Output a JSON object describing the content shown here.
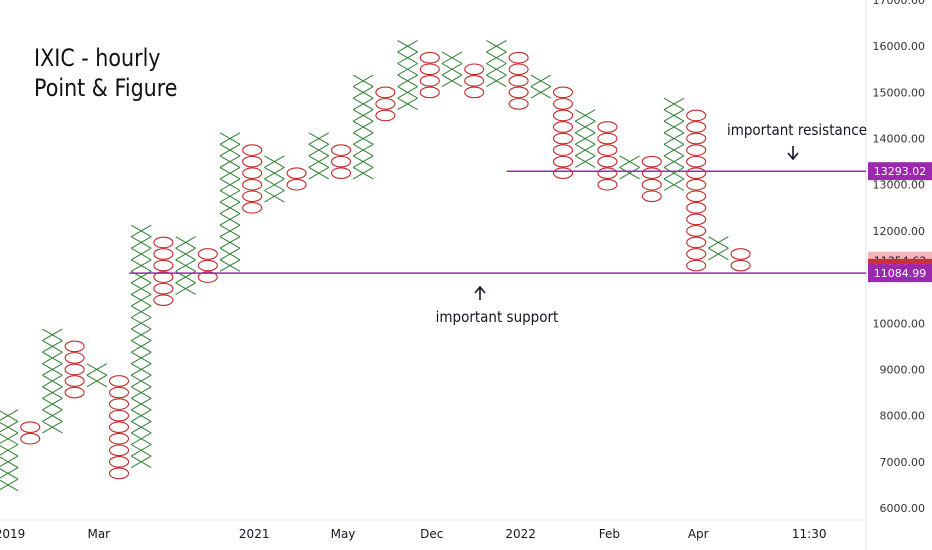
{
  "title_lines": [
    "IXIC - hourly",
    "Point & Figure"
  ],
  "chart_data": {
    "type": "point-and-figure",
    "title": "IXIC - hourly Point & Figure",
    "ylim": [
      5900,
      17200
    ],
    "box_size": 250,
    "y_ticks": [
      6000,
      7000,
      8000,
      9000,
      10000,
      11000,
      12000,
      13000,
      14000,
      15000,
      16000,
      17000
    ],
    "y_tick_labels": [
      "6000.00",
      "7000.00",
      "8000.00",
      "9000.00",
      "10000.00",
      "11000.00",
      "12000.00",
      "13000.00",
      "14000.00",
      "15000.00",
      "16000.00",
      "17000.00"
    ],
    "x_labels": [
      {
        "col": 0,
        "label": "2019"
      },
      {
        "col": 4,
        "label": "Mar"
      },
      {
        "col": 11,
        "label": "2021"
      },
      {
        "col": 15,
        "label": "May"
      },
      {
        "col": 19,
        "label": "Dec"
      },
      {
        "col": 23,
        "label": "2022"
      },
      {
        "col": 27,
        "label": "Feb"
      },
      {
        "col": 31,
        "label": "Apr"
      },
      {
        "col": 36,
        "label": "11:30"
      }
    ],
    "columns": [
      {
        "type": "X",
        "low": 6500,
        "high": 8000
      },
      {
        "type": "O",
        "low": 7500,
        "high": 7750
      },
      {
        "type": "X",
        "low": 7750,
        "high": 9750
      },
      {
        "type": "O",
        "low": 8500,
        "high": 9500
      },
      {
        "type": "X",
        "low": 8750,
        "high": 9000
      },
      {
        "type": "O",
        "low": 6750,
        "high": 8750
      },
      {
        "type": "X",
        "low": 7000,
        "high": 12000
      },
      {
        "type": "O",
        "low": 10500,
        "high": 11750
      },
      {
        "type": "X",
        "low": 10750,
        "high": 11750
      },
      {
        "type": "O",
        "low": 11000,
        "high": 11500
      },
      {
        "type": "X",
        "low": 11250,
        "high": 14000
      },
      {
        "type": "O",
        "low": 12500,
        "high": 13750
      },
      {
        "type": "X",
        "low": 12750,
        "high": 13500
      },
      {
        "type": "O",
        "low": 13000,
        "high": 13250
      },
      {
        "type": "X",
        "low": 13250,
        "high": 14000
      },
      {
        "type": "O",
        "low": 13250,
        "high": 13750
      },
      {
        "type": "X",
        "low": 13250,
        "high": 15250
      },
      {
        "type": "O",
        "low": 14500,
        "high": 15000
      },
      {
        "type": "X",
        "low": 14750,
        "high": 16000
      },
      {
        "type": "O",
        "low": 15000,
        "high": 15750
      },
      {
        "type": "X",
        "low": 15250,
        "high": 15750
      },
      {
        "type": "O",
        "low": 15000,
        "high": 15500
      },
      {
        "type": "X",
        "low": 15250,
        "high": 16000
      },
      {
        "type": "O",
        "low": 14750,
        "high": 15750
      },
      {
        "type": "X",
        "low": 15000,
        "high": 15250
      },
      {
        "type": "O",
        "low": 13250,
        "high": 15000
      },
      {
        "type": "X",
        "low": 13500,
        "high": 14500
      },
      {
        "type": "O",
        "low": 13000,
        "high": 14250
      },
      {
        "type": "X",
        "low": 13250,
        "high": 13500
      },
      {
        "type": "O",
        "low": 12750,
        "high": 13500
      },
      {
        "type": "X",
        "low": 13000,
        "high": 14750
      },
      {
        "type": "O",
        "low": 11250,
        "high": 14500
      },
      {
        "type": "X",
        "low": 11500,
        "high": 11750
      },
      {
        "type": "O",
        "low": 11250,
        "high": 11500
      }
    ],
    "lines": [
      {
        "name": "important resistance",
        "value": 13293.02,
        "label": "13293.02",
        "from_col": 23
      },
      {
        "name": "important support",
        "value": 11084.99,
        "label": "11084.99",
        "from_col": 6
      }
    ],
    "price_labels": [
      {
        "value": 11354.63,
        "label": "11354.63",
        "color": "#f4b6b8"
      },
      {
        "value": 11200.0,
        "label": "11200.00",
        "color": "#cc2f3c"
      }
    ],
    "annotations": [
      {
        "text": "important resistance",
        "arrow": "down",
        "value": 14000
      },
      {
        "text": "important support",
        "arrow": "up",
        "value": 10750
      }
    ],
    "colors": {
      "x": "#2e7d32",
      "o": "#c62828",
      "level_line": "#9c27b0",
      "axis_text": "#333333"
    }
  }
}
